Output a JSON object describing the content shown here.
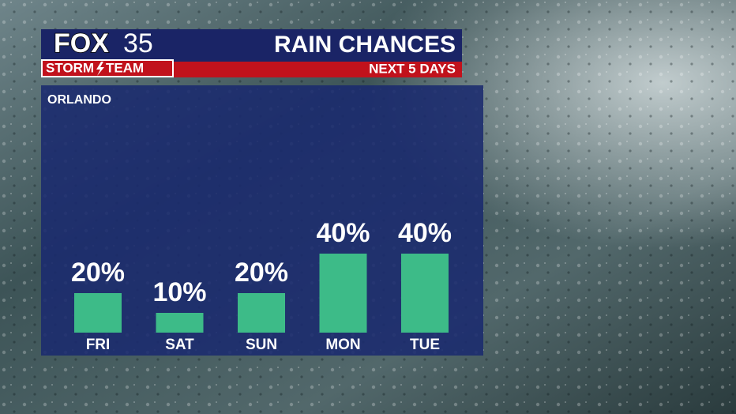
{
  "logo": {
    "network": "FOX",
    "channel": "35",
    "team_left": "STORM",
    "team_right": "TEAM"
  },
  "chart_data": {
    "type": "bar",
    "title": "RAIN CHANCES",
    "subtitle": "NEXT 5 DAYS",
    "location": "ORLANDO",
    "categories": [
      "FRI",
      "SAT",
      "SUN",
      "MON",
      "TUE"
    ],
    "values": [
      20,
      10,
      20,
      40,
      40
    ],
    "value_labels": [
      "20%",
      "10%",
      "20%",
      "40%",
      "40%"
    ],
    "color": "#3dbb88"
  }
}
